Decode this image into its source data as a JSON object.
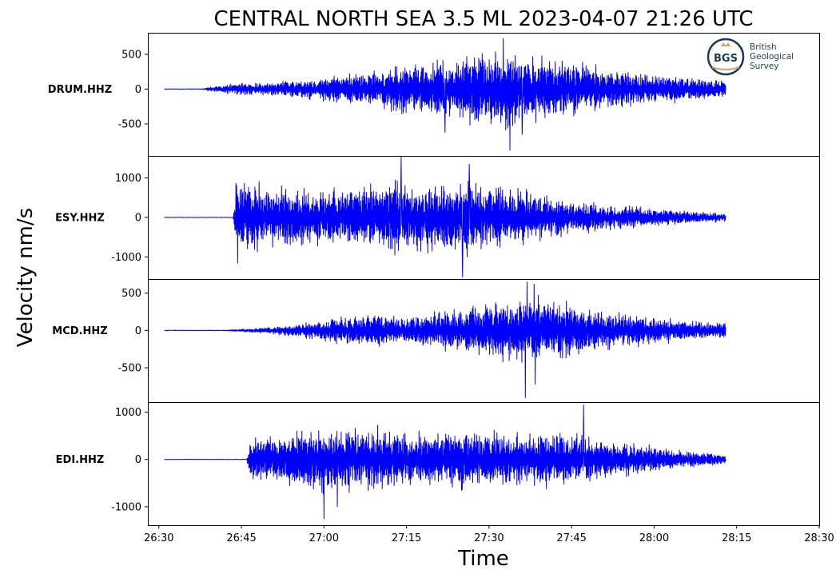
{
  "chart_data": {
    "type": "line",
    "title": "CENTRAL NORTH SEA 3.5 ML   2023-04-07 21:26 UTC",
    "xlabel": "Time",
    "ylabel": "Velocity nm/s",
    "x_ticks": [
      "26:30",
      "26:45",
      "27:00",
      "27:15",
      "27:30",
      "27:45",
      "28:00",
      "28:15",
      "28:30"
    ],
    "x_range_seconds": [
      28,
      150
    ],
    "grid": false,
    "line_color": "#0000ff",
    "series": [
      {
        "name": "DRUM.HHZ",
        "ylim": [
          -960,
          810
        ],
        "y_ticks": [
          500,
          0,
          -500
        ],
        "y_tick_labels": [
          "500",
          "0",
          "-500"
        ],
        "x": [
          31.0,
          37.5,
          39.5,
          43.0,
          50.0,
          55.0,
          60.0,
          65.0,
          70.0,
          75.0,
          80.0,
          85.0,
          88.0,
          90.0,
          92.0,
          93.5,
          95.0,
          97.0,
          100.0,
          105.0,
          110.0,
          115.0,
          120.0,
          125.0,
          130.0,
          133.0
        ],
        "envelope": [
          0,
          0,
          40,
          80,
          110,
          140,
          190,
          240,
          300,
          400,
          450,
          500,
          620,
          560,
          720,
          650,
          600,
          520,
          480,
          430,
          370,
          300,
          230,
          200,
          160,
          130
        ],
        "spikes": [
          {
            "x": 93.8,
            "y": -880
          },
          {
            "x": 92.6,
            "y": 730
          },
          {
            "x": 82.0,
            "y": -620
          },
          {
            "x": 96.0,
            "y": -650
          }
        ]
      },
      {
        "name": "ESY.HHZ",
        "ylim": [
          -1560,
          1560
        ],
        "y_ticks": [
          1000,
          0,
          -1000
        ],
        "y_tick_labels": [
          "1000",
          "0",
          "-1000"
        ],
        "x": [
          31.0,
          43.5,
          44.0,
          46.0,
          50.0,
          55.0,
          60.0,
          65.0,
          70.0,
          73.0,
          75.0,
          80.0,
          85.0,
          87.0,
          90.0,
          95.0,
          100.0,
          105.0,
          110.0,
          115.0,
          120.0,
          125.0,
          130.0,
          133.0
        ],
        "envelope": [
          0,
          0,
          900,
          1100,
          800,
          900,
          750,
          850,
          900,
          1250,
          900,
          950,
          1000,
          1200,
          900,
          800,
          650,
          500,
          400,
          320,
          250,
          180,
          150,
          100
        ],
        "spikes": [
          {
            "x": 74.0,
            "y": 1530
          },
          {
            "x": 85.2,
            "y": -1510
          },
          {
            "x": 86.4,
            "y": 1350
          },
          {
            "x": 44.3,
            "y": -1150
          }
        ]
      },
      {
        "name": "MCD.HHZ",
        "ylim": [
          -960,
          690
        ],
        "y_ticks": [
          500,
          0,
          -500
        ],
        "y_tick_labels": [
          "500",
          "0",
          "-500"
        ],
        "x": [
          31.0,
          41.0,
          45.0,
          50.0,
          55.0,
          60.0,
          65.0,
          70.0,
          75.0,
          80.0,
          85.0,
          90.0,
          95.0,
          98.0,
          100.0,
          105.0,
          110.0,
          115.0,
          120.0,
          125.0,
          130.0,
          133.0
        ],
        "envelope": [
          0,
          0,
          20,
          50,
          90,
          160,
          220,
          240,
          210,
          260,
          330,
          420,
          500,
          520,
          480,
          400,
          330,
          260,
          200,
          160,
          130,
          110
        ],
        "spikes": [
          {
            "x": 96.6,
            "y": -900
          },
          {
            "x": 96.9,
            "y": 650
          },
          {
            "x": 98.2,
            "y": 620
          },
          {
            "x": 98.4,
            "y": -720
          }
        ]
      },
      {
        "name": "EDI.HHZ",
        "ylim": [
          -1390,
          1210
        ],
        "y_ticks": [
          1000,
          0,
          -1000
        ],
        "y_tick_labels": [
          "1000",
          "0",
          "-1000"
        ],
        "x": [
          31.0,
          46.0,
          46.5,
          48.0,
          52.0,
          55.0,
          60.0,
          65.0,
          70.0,
          75.0,
          80.0,
          85.0,
          90.0,
          95.0,
          100.0,
          105.0,
          110.0,
          115.0,
          120.0,
          125.0,
          130.0,
          133.0
        ],
        "envelope": [
          0,
          0,
          450,
          500,
          550,
          650,
          800,
          700,
          750,
          650,
          600,
          700,
          650,
          600,
          680,
          600,
          500,
          380,
          300,
          200,
          150,
          110
        ],
        "spikes": [
          {
            "x": 60.0,
            "y": -1250
          },
          {
            "x": 107.2,
            "y": 1150
          },
          {
            "x": 62.4,
            "y": -1000
          }
        ]
      }
    ]
  },
  "logo": {
    "mark": "BGS",
    "line1": "British",
    "line2": "Geological",
    "line3": "Survey"
  }
}
